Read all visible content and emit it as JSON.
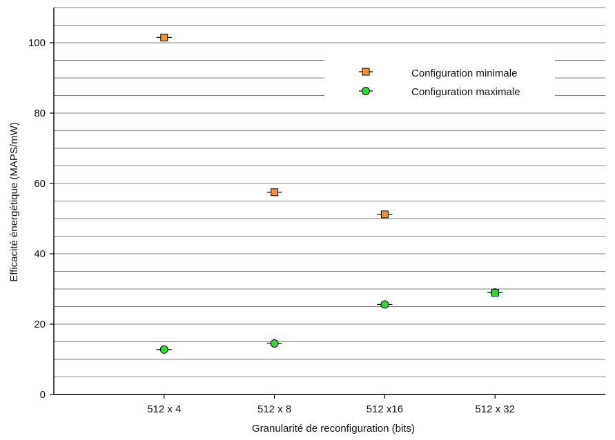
{
  "chart_data": {
    "type": "scatter",
    "categories": [
      "512 x 4",
      "512 x 8",
      "512 x16",
      "512 x 32"
    ],
    "xlabel": "Granularité de reconfiguration (bits)",
    "ylabel": "Efficacité énergétique (MAPS/mW)",
    "ylim": [
      0,
      110
    ],
    "yticks": [
      0,
      20,
      40,
      60,
      80,
      100
    ],
    "grid": true,
    "legend_position": "top-right",
    "series": [
      {
        "name": "Configuration minimale",
        "marker": "square",
        "color": "#F7941D",
        "values": [
          101.5,
          57.5,
          51.2,
          null
        ]
      },
      {
        "name": "Configuration maximale",
        "marker": "circle",
        "color": "#22E02B",
        "values": [
          12.8,
          14.5,
          25.6,
          29.0
        ]
      }
    ],
    "overlap_marker": {
      "category": "512 x 32",
      "value": 28.9,
      "fill": "#22E02B",
      "stroke": "#000000"
    }
  }
}
